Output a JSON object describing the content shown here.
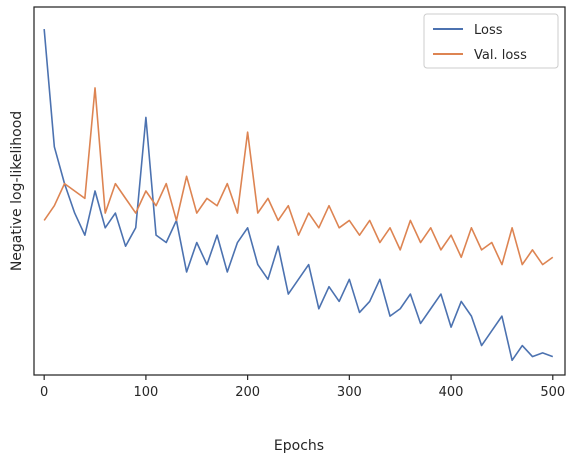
{
  "chart_data": {
    "type": "line",
    "title": "",
    "xlabel": "Epochs",
    "ylabel": "Negative log-likelihood",
    "xlim": [
      -10,
      512
    ],
    "ylim": [
      0,
      1
    ],
    "y_ticks_shown": false,
    "x_ticks": [
      0,
      100,
      200,
      300,
      400,
      500
    ],
    "x_tick_labels": [
      "0",
      "100",
      "200",
      "300",
      "400",
      "500"
    ],
    "grid": false,
    "legend_position": "top-right",
    "series": [
      {
        "name": "Loss",
        "color": "#4c72b0",
        "x": [
          0,
          10,
          20,
          30,
          40,
          50,
          60,
          70,
          80,
          90,
          100,
          110,
          120,
          130,
          140,
          150,
          160,
          170,
          180,
          190,
          200,
          210,
          220,
          230,
          240,
          250,
          260,
          270,
          280,
          290,
          300,
          310,
          320,
          330,
          340,
          350,
          360,
          370,
          380,
          390,
          400,
          410,
          420,
          430,
          440,
          450,
          460,
          470,
          480,
          490,
          500
        ],
        "y": [
          0.94,
          0.62,
          0.52,
          0.44,
          0.38,
          0.5,
          0.4,
          0.44,
          0.35,
          0.4,
          0.7,
          0.38,
          0.36,
          0.42,
          0.28,
          0.36,
          0.3,
          0.38,
          0.28,
          0.36,
          0.4,
          0.3,
          0.26,
          0.35,
          0.22,
          0.26,
          0.3,
          0.18,
          0.24,
          0.2,
          0.26,
          0.17,
          0.2,
          0.26,
          0.16,
          0.18,
          0.22,
          0.14,
          0.18,
          0.22,
          0.13,
          0.2,
          0.16,
          0.08,
          0.12,
          0.16,
          0.04,
          0.08,
          0.05,
          0.06,
          0.05
        ]
      },
      {
        "name": "Val. loss",
        "color": "#dd8452",
        "x": [
          0,
          10,
          20,
          30,
          40,
          50,
          60,
          70,
          80,
          90,
          100,
          110,
          120,
          130,
          140,
          150,
          160,
          170,
          180,
          190,
          200,
          210,
          220,
          230,
          240,
          250,
          260,
          270,
          280,
          290,
          300,
          310,
          320,
          330,
          340,
          350,
          360,
          370,
          380,
          390,
          400,
          410,
          420,
          430,
          440,
          450,
          460,
          470,
          480,
          490,
          500
        ],
        "y": [
          0.42,
          0.46,
          0.52,
          0.5,
          0.48,
          0.78,
          0.44,
          0.52,
          0.48,
          0.44,
          0.5,
          0.46,
          0.52,
          0.42,
          0.54,
          0.44,
          0.48,
          0.46,
          0.52,
          0.44,
          0.66,
          0.44,
          0.48,
          0.42,
          0.46,
          0.38,
          0.44,
          0.4,
          0.46,
          0.4,
          0.42,
          0.38,
          0.42,
          0.36,
          0.4,
          0.34,
          0.42,
          0.36,
          0.4,
          0.34,
          0.38,
          0.32,
          0.4,
          0.34,
          0.36,
          0.3,
          0.4,
          0.3,
          0.34,
          0.3,
          0.32
        ]
      }
    ]
  }
}
